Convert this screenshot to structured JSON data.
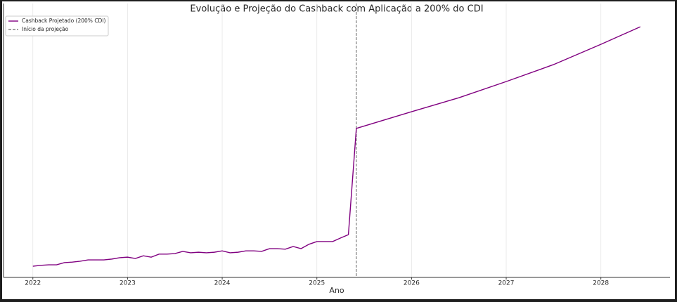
{
  "chart_data": {
    "type": "line",
    "title": "Evolução e Projeção do Cashback com Aplicação a 200% do CDI",
    "x_label": "Ano",
    "x": [
      2022.0,
      2022.083,
      2022.167,
      2022.25,
      2022.333,
      2022.417,
      2022.5,
      2022.583,
      2022.667,
      2022.75,
      2022.833,
      2022.917,
      2023.0,
      2023.083,
      2023.167,
      2023.25,
      2023.333,
      2023.417,
      2023.5,
      2023.583,
      2023.667,
      2023.75,
      2023.833,
      2023.917,
      2024.0,
      2024.083,
      2024.167,
      2024.25,
      2024.333,
      2024.417,
      2024.5,
      2024.583,
      2024.667,
      2024.75,
      2024.833,
      2024.917,
      2025.0,
      2025.083,
      2025.167,
      2025.25,
      2025.333,
      2025.417,
      2026.0,
      2026.5,
      2027.0,
      2027.5,
      2028.0,
      2028.417
    ],
    "series": [
      {
        "name": "Cashback Projetado (200% CDI)",
        "color": "#800080",
        "values": [
          4.1,
          4.4,
          4.6,
          4.6,
          5.4,
          5.6,
          5.9,
          6.4,
          6.4,
          6.4,
          6.7,
          7.2,
          7.4,
          6.9,
          7.9,
          7.4,
          8.5,
          8.5,
          8.7,
          9.5,
          9.0,
          9.2,
          9.0,
          9.2,
          9.7,
          9.0,
          9.2,
          9.7,
          9.7,
          9.5,
          10.5,
          10.5,
          10.3,
          11.3,
          10.5,
          12.1,
          13.1,
          13.1,
          13.1,
          14.4,
          15.6,
          54.4,
          60.5,
          65.6,
          71.5,
          77.7,
          85.1,
          91.5
        ]
      }
    ],
    "vlines": [
      {
        "name": "Início da projeção",
        "x": 2025.417,
        "color": "#808080"
      }
    ],
    "xlim": [
      2021.69,
      2028.73
    ],
    "ylim": [
      0,
      100
    ],
    "xticks": [
      2022,
      2023,
      2024,
      2025,
      2026,
      2027,
      2028
    ],
    "grid": true,
    "legend": "upper left"
  }
}
